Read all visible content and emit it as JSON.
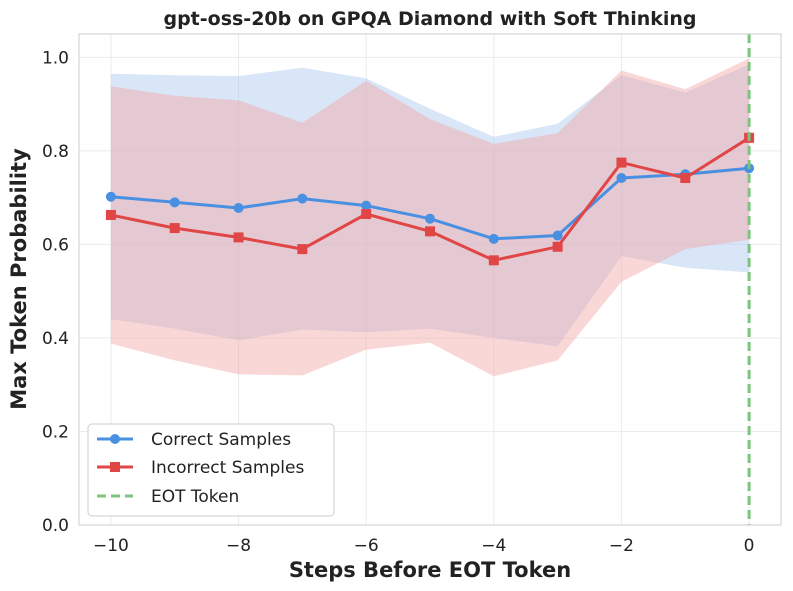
{
  "chart_data": {
    "type": "line",
    "title": "gpt-oss-20b on GPQA Diamond with Soft Thinking",
    "xlabel": "Steps Before EOT Token",
    "ylabel": "Max Token Probability",
    "xlim": [
      -10.5,
      0.5
    ],
    "ylim": [
      0.0,
      1.05
    ],
    "xticks": [
      -10,
      -8,
      -6,
      -4,
      -2,
      0
    ],
    "xtick_labels": [
      "−10",
      "−8",
      "−6",
      "−4",
      "−2",
      "0"
    ],
    "yticks": [
      0.0,
      0.2,
      0.4,
      0.6,
      0.8,
      1.0
    ],
    "ytick_labels": [
      "0.0",
      "0.2",
      "0.4",
      "0.6",
      "0.8",
      "1.0"
    ],
    "grid": true,
    "legend_position": "bottom-left",
    "x": [
      -10,
      -9,
      -8,
      -7,
      -6,
      -5,
      -4,
      -3,
      -2,
      -1,
      0
    ],
    "series": [
      {
        "name": "Correct Samples",
        "color": "#4a90e2",
        "marker": "circle",
        "values": [
          0.702,
          0.69,
          0.678,
          0.698,
          0.683,
          0.655,
          0.612,
          0.619,
          0.742,
          0.75,
          0.763
        ],
        "band_upper": [
          0.965,
          0.962,
          0.96,
          0.978,
          0.955,
          0.89,
          0.83,
          0.858,
          0.962,
          0.925,
          0.985
        ],
        "band_lower": [
          0.44,
          0.42,
          0.395,
          0.418,
          0.412,
          0.42,
          0.4,
          0.382,
          0.575,
          0.55,
          0.54
        ],
        "band_color": "#a9c8ee"
      },
      {
        "name": "Incorrect Samples",
        "color": "#e04646",
        "marker": "square",
        "values": [
          0.663,
          0.635,
          0.615,
          0.59,
          0.665,
          0.628,
          0.566,
          0.595,
          0.775,
          0.742,
          0.828
        ],
        "band_upper": [
          0.938,
          0.918,
          0.908,
          0.86,
          0.95,
          0.868,
          0.815,
          0.838,
          0.972,
          0.932,
          0.998
        ],
        "band_lower": [
          0.388,
          0.352,
          0.322,
          0.32,
          0.375,
          0.39,
          0.318,
          0.352,
          0.52,
          0.59,
          0.61
        ],
        "band_color": "#f4a6a6"
      }
    ],
    "vline": {
      "x": 0,
      "name": "EOT Token",
      "color": "#7cc47c",
      "style": "dashed"
    }
  }
}
